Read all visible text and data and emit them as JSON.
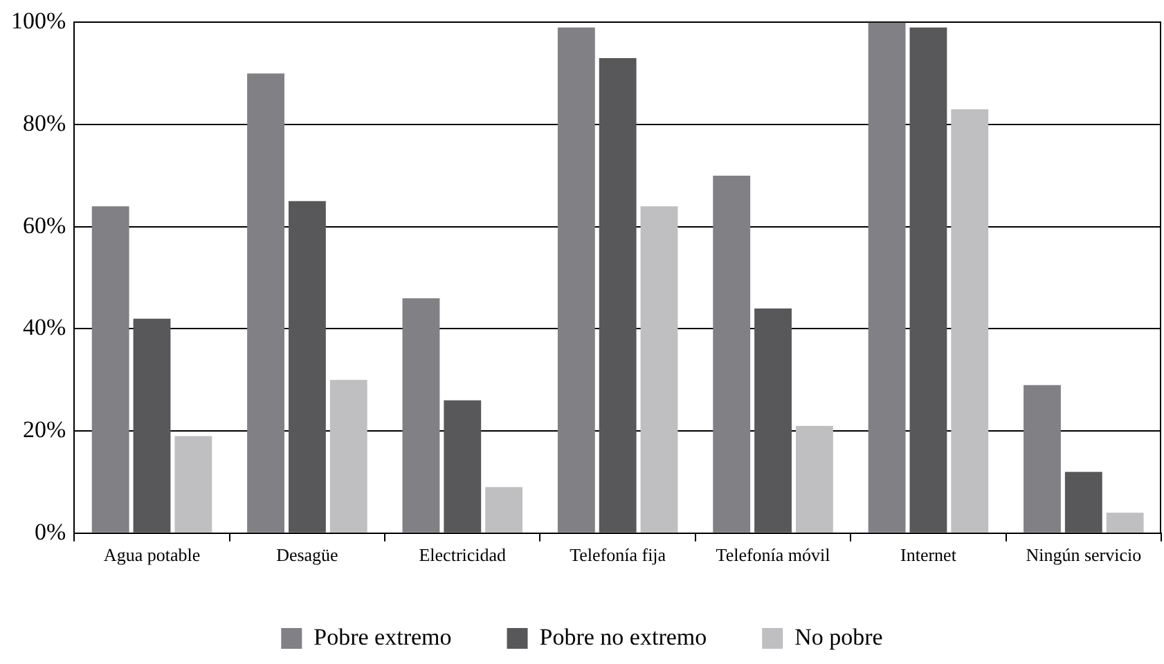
{
  "chart_data": {
    "type": "bar",
    "categories": [
      "Agua potable",
      "Desagüe",
      "Electricidad",
      "Telefonía fija",
      "Telefonía móvil",
      "Internet",
      "Ningún servicio"
    ],
    "series": [
      {
        "name": "Pobre extremo",
        "color": "#808085",
        "values": [
          64,
          90,
          46,
          99,
          70,
          100,
          29
        ]
      },
      {
        "name": "Pobre no extremo",
        "color": "#58585a",
        "values": [
          42,
          65,
          26,
          93,
          44,
          99,
          12
        ]
      },
      {
        "name": "No pobre",
        "color": "#bfbfc1",
        "values": [
          19,
          30,
          9,
          64,
          21,
          83,
          4
        ]
      }
    ],
    "ylim": [
      0,
      100
    ],
    "yticks": [
      {
        "value": 0,
        "label": "0%"
      },
      {
        "value": 20,
        "label": "20%"
      },
      {
        "value": 40,
        "label": "40%"
      },
      {
        "value": 60,
        "label": "60%"
      },
      {
        "value": 80,
        "label": "80%"
      },
      {
        "value": 100,
        "label": "100%"
      }
    ],
    "grid": "y",
    "legend": "bottom"
  }
}
